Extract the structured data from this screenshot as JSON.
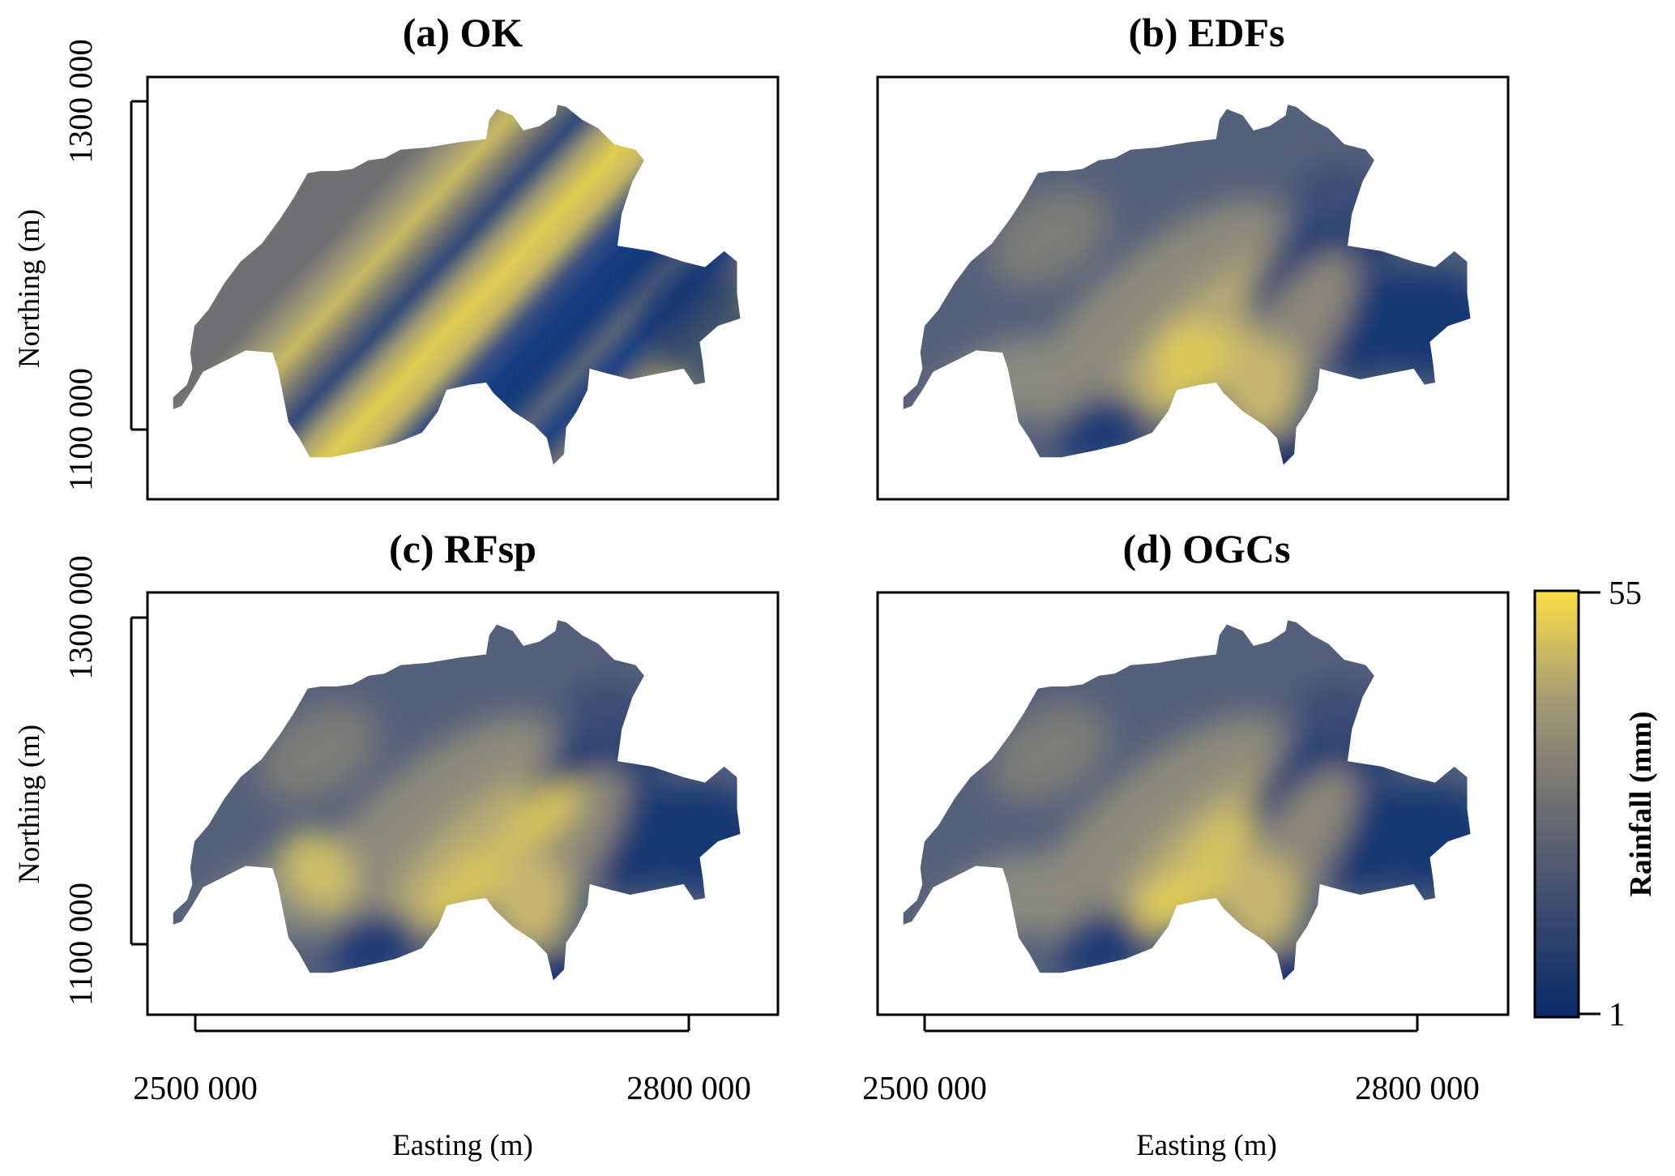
{
  "figure": {
    "panels": [
      {
        "id": "a",
        "title": "(a) OK",
        "style": "striped"
      },
      {
        "id": "b",
        "title": "(b) EDFs",
        "style": "smooth"
      },
      {
        "id": "c",
        "title": "(c) RFsp",
        "style": "smooth"
      },
      {
        "id": "d",
        "title": "(d) OGCs",
        "style": "smooth"
      }
    ],
    "y_axis": {
      "label": "Northing (m)",
      "ticks": [
        "1300 000",
        "1100 000"
      ],
      "tick_values": [
        1300000,
        1100000
      ]
    },
    "x_axis": {
      "label": "Easting (m)",
      "ticks": [
        "2500 000",
        "2800 000"
      ],
      "tick_values": [
        2500000,
        2800000
      ]
    },
    "colorbar": {
      "label": "Rainfall (mm)",
      "min_label": "1",
      "max_label": "55",
      "range": [
        1,
        55
      ],
      "colors": [
        "#0a2a68",
        "#3a4a6e",
        "#6e6f72",
        "#a69c74",
        "#fbe045"
      ]
    }
  }
}
